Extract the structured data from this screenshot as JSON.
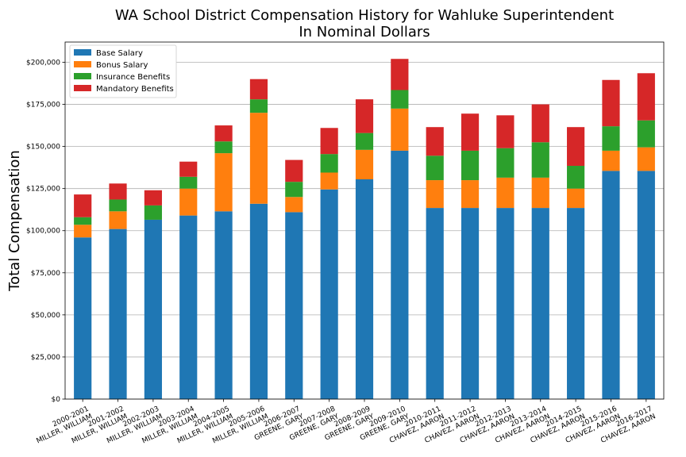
{
  "chart_data": {
    "type": "bar",
    "stacked": true,
    "title": "WA School District Compensation History for Wahluke Superintendent",
    "subtitle": "In Nominal Dollars",
    "xlabel": "",
    "ylabel": "Total Compensation",
    "ylim": [
      0,
      212000
    ],
    "yticks": [
      0,
      25000,
      50000,
      75000,
      100000,
      125000,
      150000,
      175000,
      200000
    ],
    "ytick_labels": [
      "$0",
      "$25,000",
      "$50,000",
      "$75,000",
      "$100,000",
      "$125,000",
      "$150,000",
      "$175,000",
      "$200,000"
    ],
    "grid": "horizontal",
    "legend_position": "top-left",
    "categories": [
      [
        "2000-2001",
        "MILLER, WILLIAM"
      ],
      [
        "2001-2002",
        "MILLER, WILLIAM"
      ],
      [
        "2002-2003",
        "MILLER, WILLIAM"
      ],
      [
        "2003-2004",
        "MILLER, WILLIAM"
      ],
      [
        "2004-2005",
        "MILLER, WILLIAM"
      ],
      [
        "2005-2006",
        "MILLER, WILLIAM"
      ],
      [
        "2006-2007",
        "GREENE, GARY"
      ],
      [
        "2007-2008",
        "GREENE, GARY"
      ],
      [
        "2008-2009",
        "GREENE, GARY"
      ],
      [
        "2009-2010",
        "GREENE, GARY"
      ],
      [
        "2010-2011",
        "CHAVEZ, AARON"
      ],
      [
        "2011-2012",
        "CHAVEZ, AARON"
      ],
      [
        "2012-2013",
        "CHAVEZ, AARON"
      ],
      [
        "2013-2014",
        "CHAVEZ, AARON"
      ],
      [
        "2014-2015",
        "CHAVEZ, AARON"
      ],
      [
        "2015-2016",
        "CHAVEZ, AARON"
      ],
      [
        "2016-2017",
        "CHAVEZ, AARON"
      ]
    ],
    "series": [
      {
        "name": "Base Salary",
        "color": "#1f77b4",
        "values": [
          96000,
          101000,
          106500,
          109000,
          111500,
          116000,
          111000,
          124500,
          130500,
          147500,
          113500,
          113500,
          113500,
          113500,
          113500,
          135500,
          135500
        ]
      },
      {
        "name": "Bonus Salary",
        "color": "#ff7f0e",
        "values": [
          7500,
          10500,
          0,
          16000,
          34500,
          54000,
          9000,
          10000,
          17500,
          25000,
          16500,
          16500,
          18000,
          18000,
          11500,
          12000,
          14000
        ]
      },
      {
        "name": "Insurance Benefits",
        "color": "#2ca02c",
        "values": [
          4500,
          7000,
          8500,
          7000,
          7000,
          8000,
          9000,
          11000,
          10000,
          11000,
          14500,
          17500,
          17500,
          21000,
          13500,
          14500,
          16000
        ]
      },
      {
        "name": "Mandatory Benefits",
        "color": "#d62728",
        "values": [
          13500,
          9500,
          9000,
          9000,
          9500,
          12000,
          13000,
          15500,
          20000,
          18500,
          17000,
          22000,
          19500,
          22500,
          23000,
          27500,
          28000
        ]
      }
    ]
  }
}
